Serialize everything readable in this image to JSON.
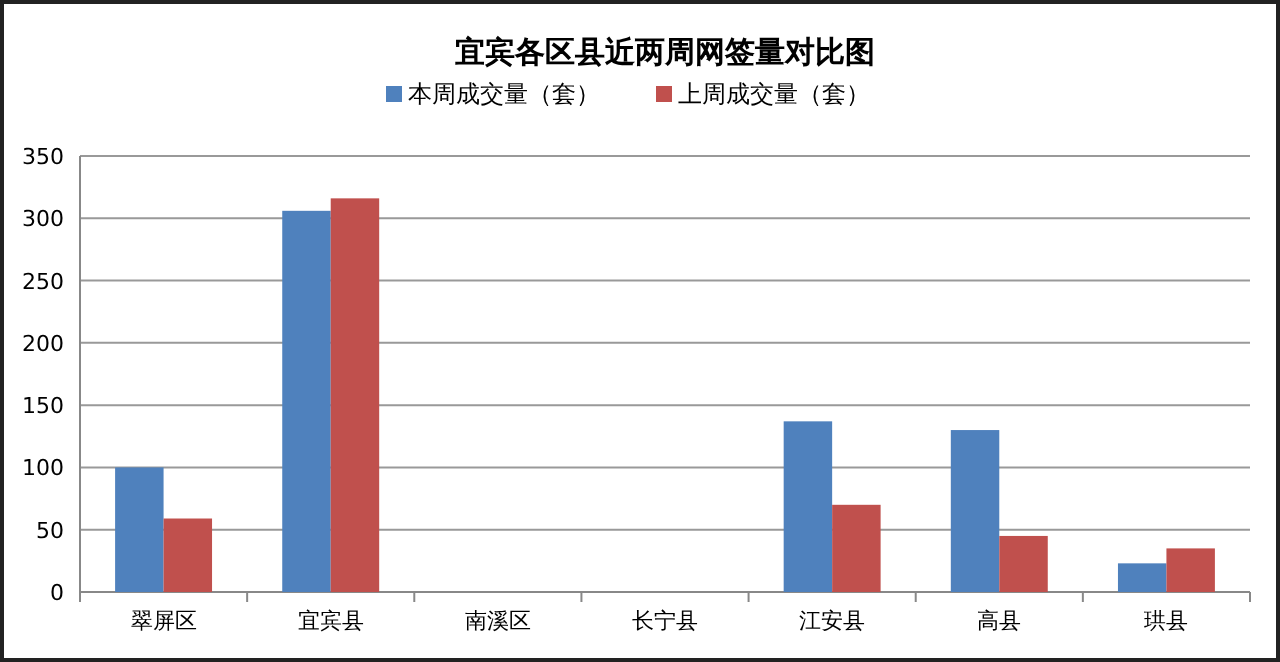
{
  "chart_data": {
    "type": "bar",
    "title": "宜宾各区县近两周网签量对比图",
    "categories": [
      "翠屏区",
      "宜宾县",
      "南溪区",
      "长宁县",
      "江安县",
      "高县",
      "珙县"
    ],
    "series": [
      {
        "name": "本周成交量（套）",
        "color": "#4f81bd",
        "values": [
          100,
          306,
          null,
          null,
          137,
          130,
          23
        ]
      },
      {
        "name": "上周成交量（套）",
        "color": "#c0504d",
        "values": [
          59,
          316,
          null,
          null,
          70,
          45,
          35
        ]
      }
    ],
    "ylim": [
      0,
      350
    ],
    "yticks": [
      0,
      50,
      100,
      150,
      200,
      250,
      300,
      350
    ],
    "grid": "y",
    "legend": "top"
  }
}
